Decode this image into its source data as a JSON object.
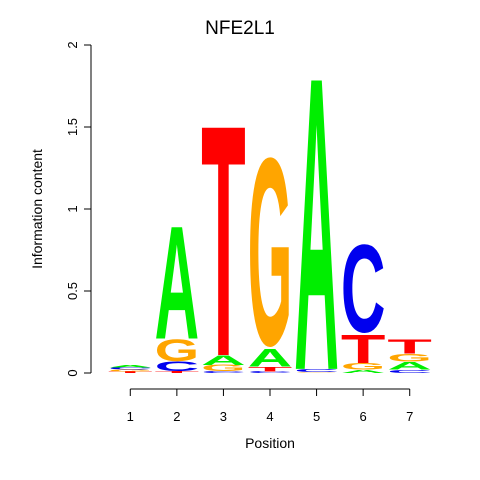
{
  "chart_data": {
    "type": "sequence-logo",
    "title": "NFE2L1",
    "xlabel": "Position",
    "ylabel": "Information content",
    "ylim": [
      0,
      2
    ],
    "y_ticks": [
      "0",
      "0.5",
      "1",
      "1.5",
      "2"
    ],
    "x_ticks": [
      "1",
      "2",
      "3",
      "4",
      "5",
      "6",
      "7"
    ],
    "colors": {
      "A": "#00ee00",
      "C": "#0000ee",
      "G": "#ffa500",
      "T": "#ff0000"
    },
    "positions": [
      {
        "position": 1,
        "stack": [
          {
            "letter": "T",
            "height": 0.01
          },
          {
            "letter": "G",
            "height": 0.01
          },
          {
            "letter": "C",
            "height": 0.015
          },
          {
            "letter": "A",
            "height": 0.015
          }
        ]
      },
      {
        "position": 2,
        "stack": [
          {
            "letter": "T",
            "height": 0.01
          },
          {
            "letter": "C",
            "height": 0.06
          },
          {
            "letter": "G",
            "height": 0.14
          },
          {
            "letter": "A",
            "height": 0.71
          }
        ]
      },
      {
        "position": 3,
        "stack": [
          {
            "letter": "C",
            "height": 0.01
          },
          {
            "letter": "G",
            "height": 0.04
          },
          {
            "letter": "A",
            "height": 0.06
          },
          {
            "letter": "T",
            "height": 1.45
          }
        ]
      },
      {
        "position": 4,
        "stack": [
          {
            "letter": "C",
            "height": 0.01
          },
          {
            "letter": "T",
            "height": 0.03
          },
          {
            "letter": "A",
            "height": 0.11
          },
          {
            "letter": "G",
            "height": 1.2
          }
        ]
      },
      {
        "position": 5,
        "stack": [
          {
            "letter": "G",
            "height": 0.005
          },
          {
            "letter": "C",
            "height": 0.02
          },
          {
            "letter": "A",
            "height": 1.84
          }
        ]
      },
      {
        "position": 6,
        "stack": [
          {
            "letter": "A",
            "height": 0.02
          },
          {
            "letter": "G",
            "height": 0.04
          },
          {
            "letter": "T",
            "height": 0.18
          },
          {
            "letter": "C",
            "height": 0.56
          }
        ]
      },
      {
        "position": 7,
        "stack": [
          {
            "letter": "C",
            "height": 0.02
          },
          {
            "letter": "A",
            "height": 0.05
          },
          {
            "letter": "G",
            "height": 0.05
          },
          {
            "letter": "T",
            "height": 0.09
          }
        ]
      }
    ]
  }
}
